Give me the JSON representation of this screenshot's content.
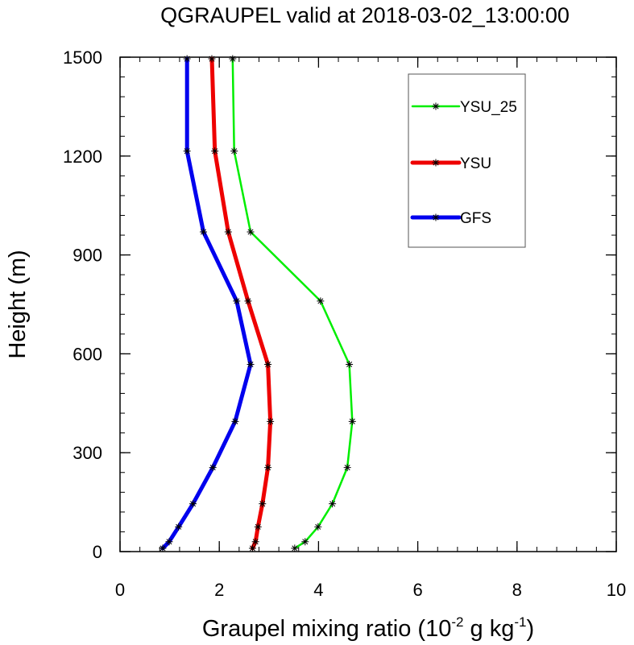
{
  "chart_data": {
    "type": "line",
    "title": "QGRAUPEL valid at 2018-03-02_13:00:00",
    "xlabel": "Graupel mixing ratio (10",
    "xlabel_exp1": "-2",
    "xlabel_mid": " g kg",
    "xlabel_exp2": "-1",
    "xlabel_end": ")",
    "ylabel": "Height (m)",
    "xlim": [
      0,
      10
    ],
    "ylim": [
      0,
      1500
    ],
    "x_ticks": [
      0,
      2,
      4,
      6,
      8,
      10
    ],
    "x_tick_labels": [
      "0",
      "2",
      "4",
      "6",
      "8",
      "10"
    ],
    "y_ticks": [
      0,
      300,
      600,
      900,
      1200,
      1500
    ],
    "y_tick_labels": [
      "0",
      "300",
      "600",
      "900",
      "1200",
      "1500"
    ],
    "x_minor_step": 0.4,
    "y_minor_step": 60,
    "grid": false,
    "legend_position": "top-right",
    "heights": [
      10,
      30,
      75,
      145,
      255,
      395,
      568,
      760,
      970,
      1215,
      1495
    ],
    "series": [
      {
        "name": "YSU_25",
        "color": "#00ee00",
        "values": [
          3.52,
          3.73,
          3.99,
          4.28,
          4.58,
          4.68,
          4.62,
          4.04,
          2.63,
          2.3,
          2.27
        ]
      },
      {
        "name": "YSU",
        "color": "#ee0000",
        "values": [
          2.67,
          2.73,
          2.78,
          2.87,
          2.98,
          3.03,
          2.98,
          2.58,
          2.18,
          1.91,
          1.85
        ]
      },
      {
        "name": "GFS",
        "color": "#0000ee",
        "values": [
          0.86,
          0.99,
          1.18,
          1.47,
          1.87,
          2.32,
          2.63,
          2.35,
          1.68,
          1.35,
          1.35
        ]
      }
    ]
  }
}
